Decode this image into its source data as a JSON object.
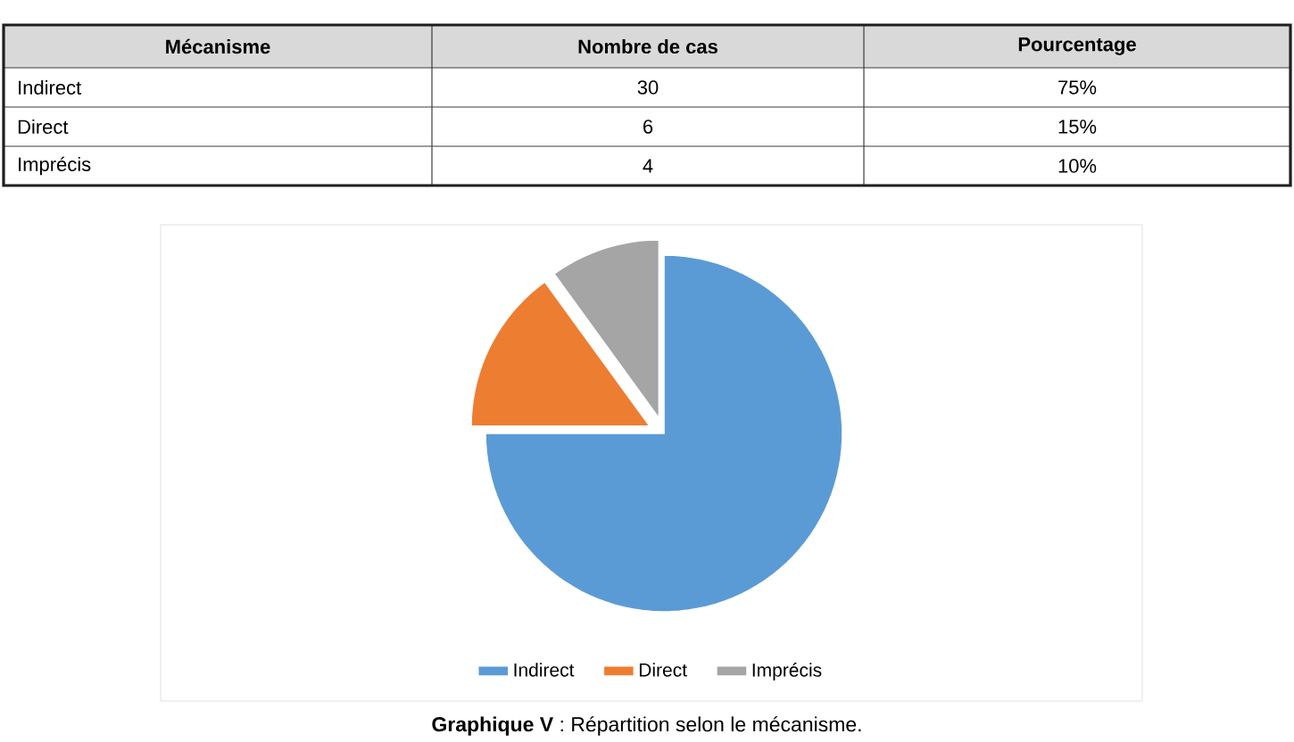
{
  "chart_data": {
    "type": "pie",
    "categories": [
      "Indirect",
      "Direct",
      "Imprécis"
    ],
    "values": [
      75,
      15,
      10
    ],
    "colors": [
      "#5b9bd5",
      "#ed7d31",
      "#a5a5a5"
    ],
    "legend": "bottom",
    "annotations": [
      "Mécanisme",
      "Nombre de cas",
      "Pourcentage",
      "30",
      "75%",
      "6",
      "15%",
      "4",
      "10%",
      "**Graphique V** : Répartition selon le mécanisme."
    ]
  }
}
